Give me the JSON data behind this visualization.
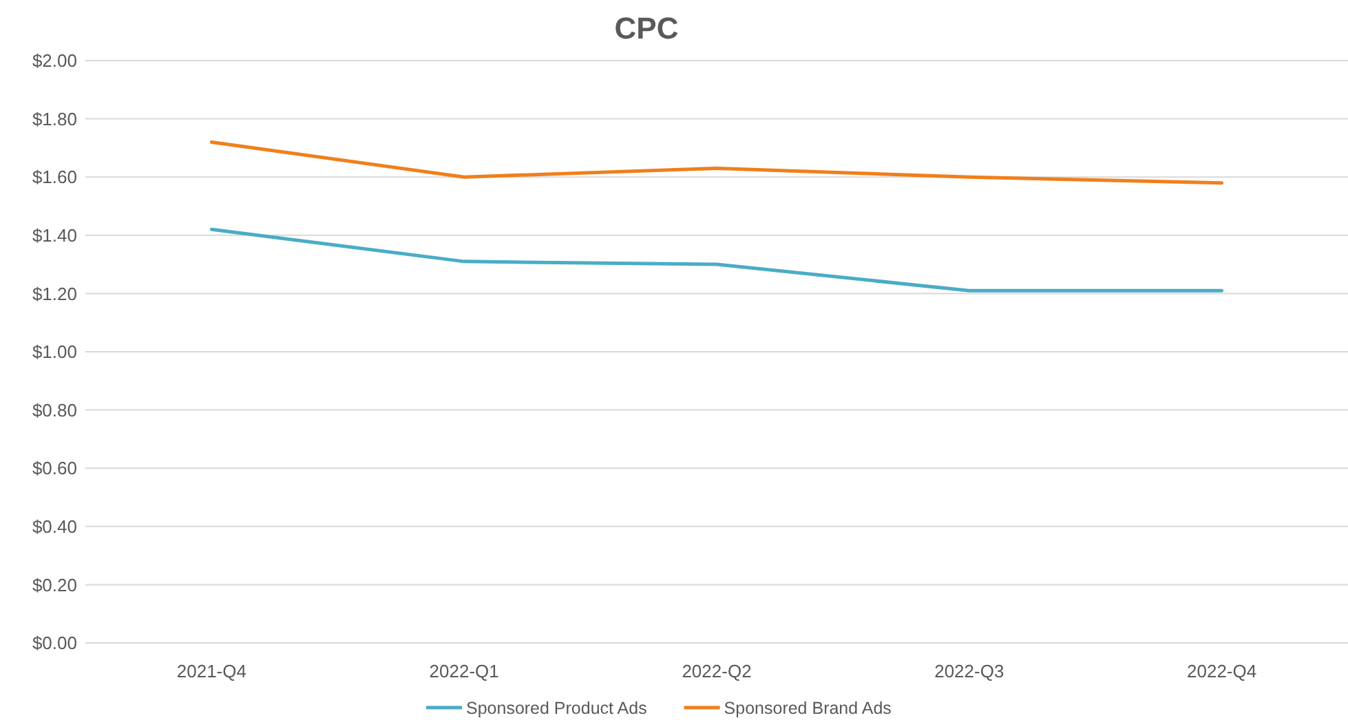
{
  "chart_data": {
    "type": "line",
    "title": "CPC",
    "categories": [
      "2021-Q4",
      "2022-Q1",
      "2022-Q2",
      "2022-Q3",
      "2022-Q4"
    ],
    "series": [
      {
        "name": "Sponsored Product Ads",
        "color": "#4aacc6",
        "values": [
          1.42,
          1.31,
          1.3,
          1.21,
          1.21
        ]
      },
      {
        "name": "Sponsored Brand Ads",
        "color": "#f07f1b",
        "values": [
          1.72,
          1.6,
          1.63,
          1.6,
          1.58
        ]
      }
    ],
    "ylim": [
      0,
      2
    ],
    "yticks": [
      {
        "value": 0,
        "label": "$0.00"
      },
      {
        "value": 0.2,
        "label": "$0.20"
      },
      {
        "value": 0.4,
        "label": "$0.40"
      },
      {
        "value": 0.6,
        "label": "$0.60"
      },
      {
        "value": 0.8,
        "label": "$0.80"
      },
      {
        "value": 1,
        "label": "$1.00"
      },
      {
        "value": 1.2,
        "label": "$1.20"
      },
      {
        "value": 1.4,
        "label": "$1.40"
      },
      {
        "value": 1.6,
        "label": "$1.60"
      },
      {
        "value": 1.8,
        "label": "$1.80"
      },
      {
        "value": 2,
        "label": "$2.00"
      }
    ],
    "grid": "y",
    "legend": "bottom",
    "marker": "none",
    "line_style": "solid"
  }
}
